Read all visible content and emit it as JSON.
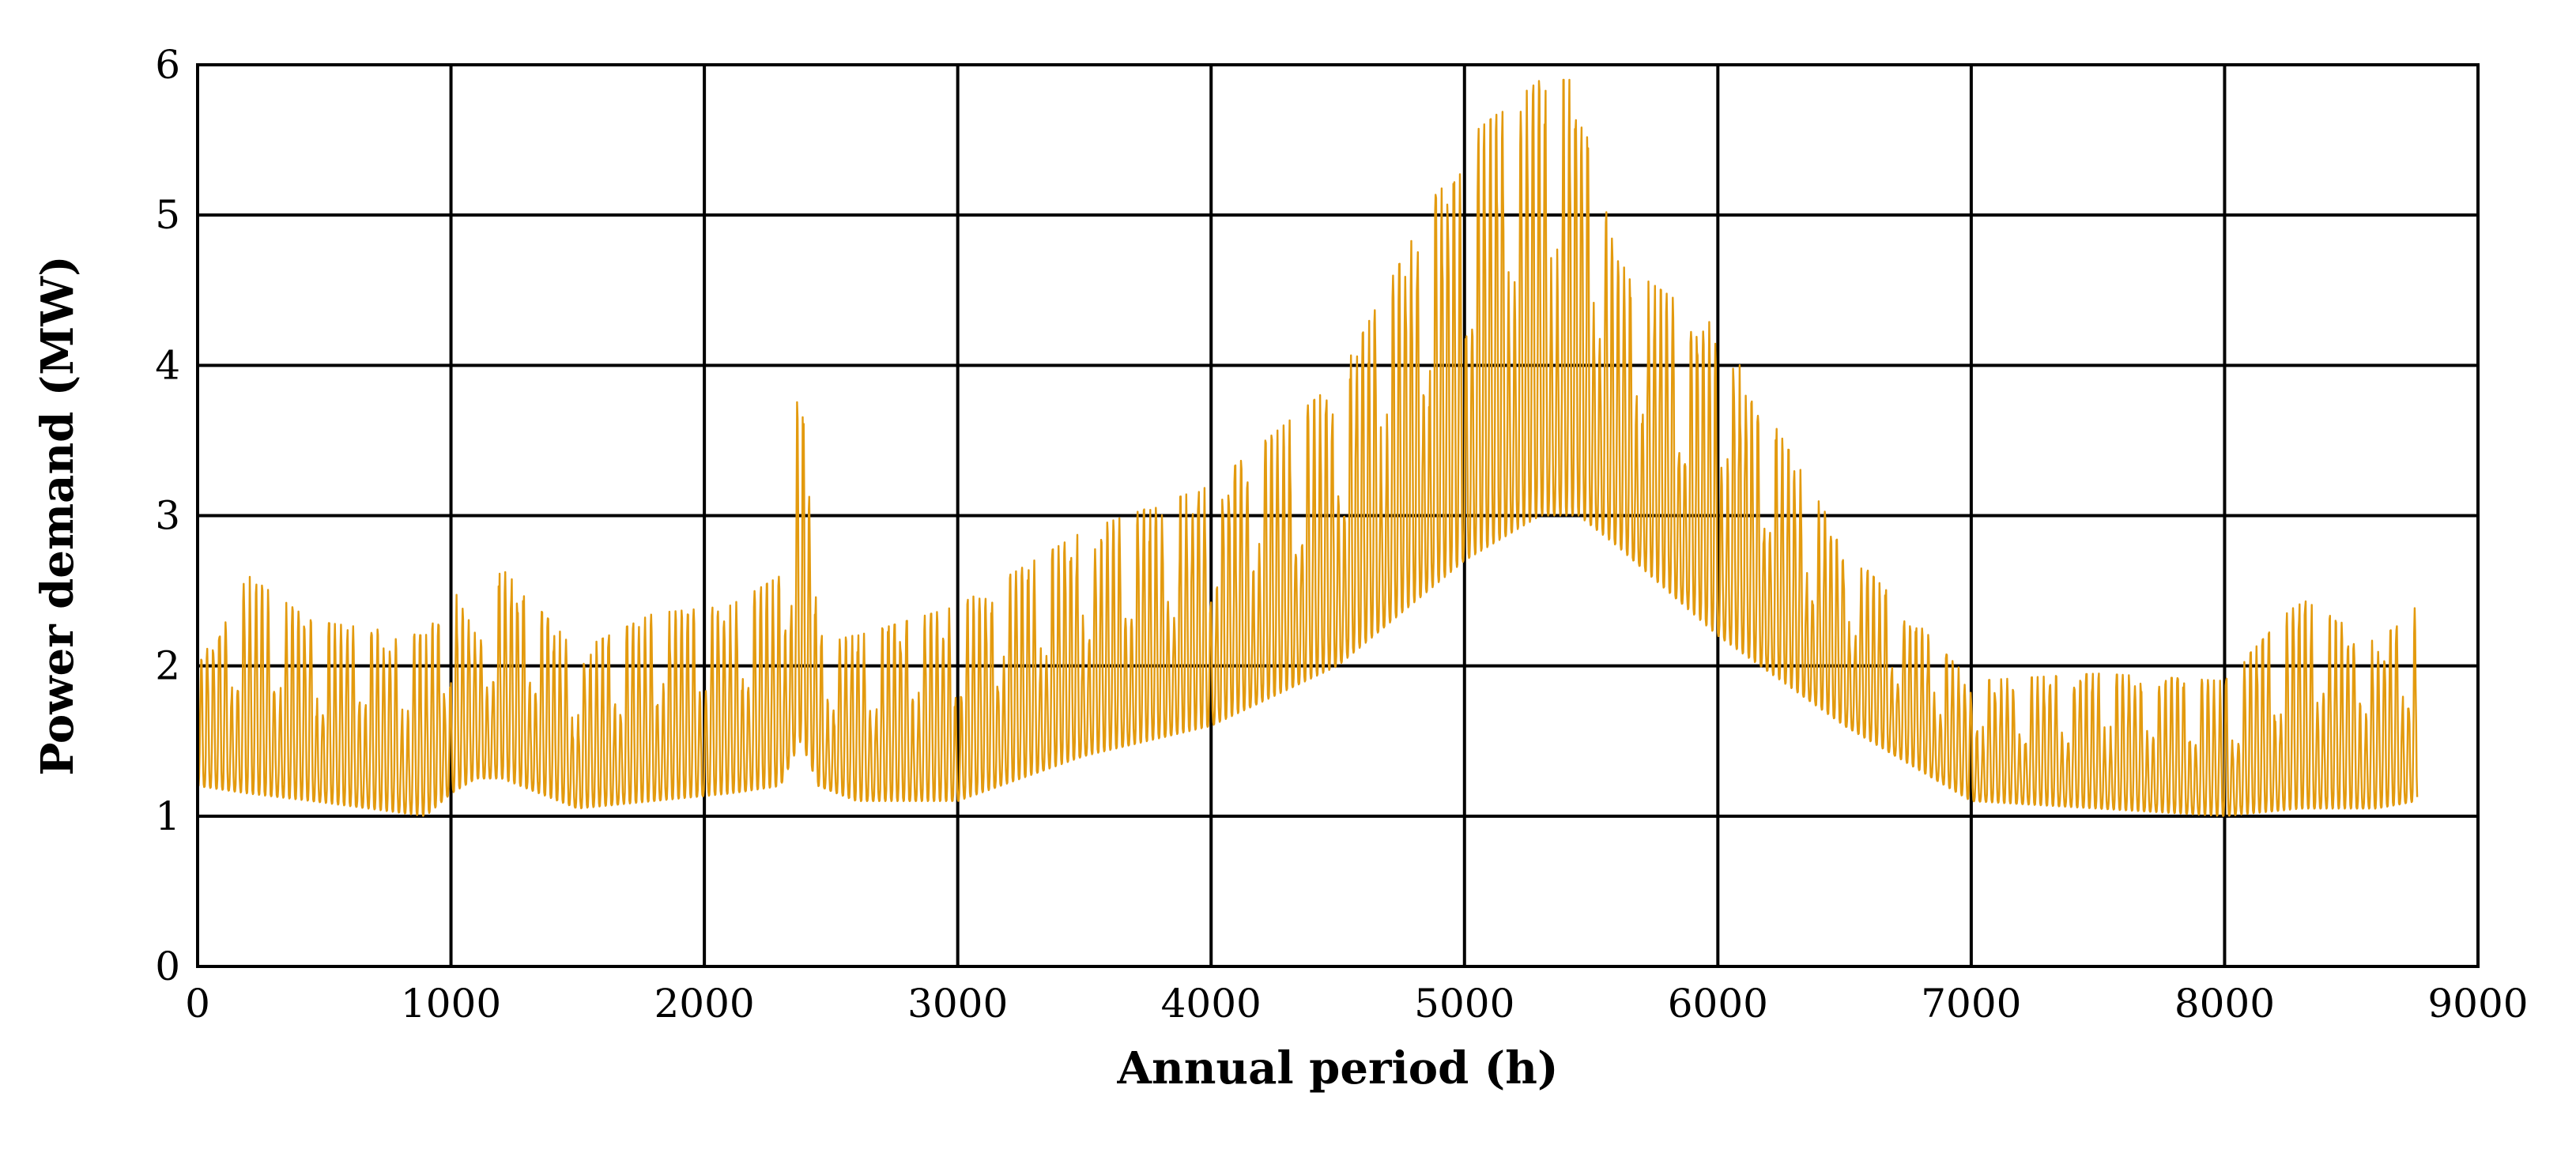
{
  "chart_data": {
    "type": "line",
    "title": "",
    "xlabel": "Annual period  (h)",
    "ylabel": "Power demand (MW)",
    "xlim": [
      0,
      9000
    ],
    "ylim": [
      0,
      6
    ],
    "x_ticks": [
      0,
      1000,
      2000,
      3000,
      4000,
      5000,
      6000,
      7000,
      8000,
      9000
    ],
    "y_ticks": [
      0,
      1,
      2,
      3,
      4,
      5,
      6
    ],
    "x_tick_labels": [
      "0",
      "1000",
      "2000",
      "3000",
      "4000",
      "5000",
      "6000",
      "7000",
      "8000",
      "9000"
    ],
    "y_tick_labels": [
      "0",
      "1",
      "2",
      "3",
      "4",
      "5",
      "6"
    ],
    "grid": true,
    "legend": "none",
    "series": [
      {
        "name": "Power demand",
        "color": "#E39A0E",
        "resolution_h": 1,
        "x_range": [
          0,
          8760
        ],
        "envelope_hours": [
          0,
          200,
          450,
          900,
          1000,
          1100,
          1200,
          1500,
          1800,
          2100,
          2300,
          2380,
          2450,
          2600,
          3000,
          3500,
          4000,
          4500,
          5000,
          5300,
          5450,
          5600,
          6000,
          6500,
          7000,
          7500,
          8000,
          8300,
          8600,
          8760
        ],
        "envelope_min": [
          1.2,
          1.15,
          1.1,
          1.0,
          1.15,
          1.25,
          1.25,
          1.05,
          1.1,
          1.15,
          1.2,
          1.5,
          1.2,
          1.1,
          1.1,
          1.4,
          1.6,
          2.0,
          2.7,
          3.0,
          3.0,
          2.8,
          2.2,
          1.6,
          1.1,
          1.05,
          1.0,
          1.05,
          1.05,
          1.1
        ],
        "envelope_max": [
          2.0,
          2.6,
          2.3,
          2.2,
          2.55,
          2.2,
          2.65,
          2.1,
          2.35,
          2.4,
          2.6,
          4.0,
          2.2,
          2.2,
          2.4,
          2.9,
          3.2,
          3.9,
          5.5,
          5.9,
          5.9,
          4.7,
          4.25,
          2.8,
          1.9,
          1.95,
          1.9,
          2.45,
          2.15,
          2.4
        ]
      }
    ]
  }
}
